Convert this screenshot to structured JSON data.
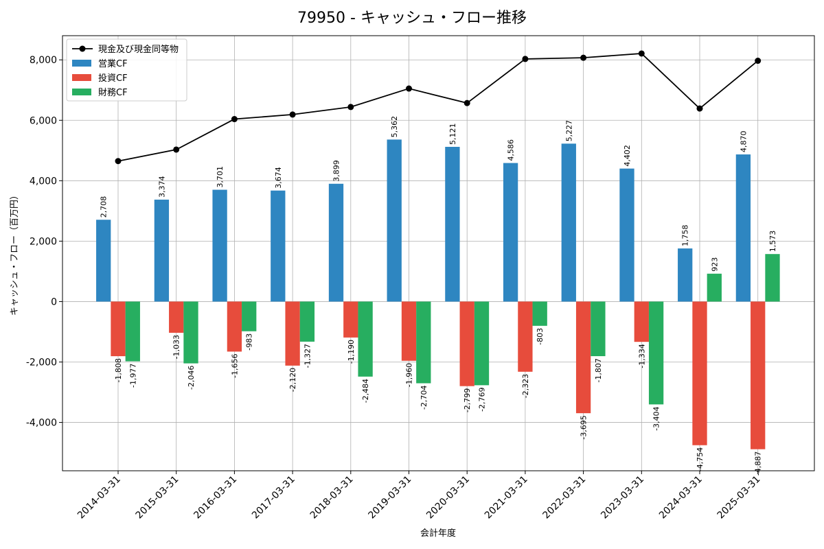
{
  "chart_data": {
    "type": "bar",
    "title": "79950 - キャッシュ・フロー推移",
    "xlabel": "会計年度",
    "ylabel": "キャッシュ・フロー（百万円）",
    "ylim": [
      -5600,
      8800
    ],
    "yticks": [
      -4000,
      -2000,
      0,
      2000,
      4000,
      6000,
      8000
    ],
    "ytick_labels": [
      "-4,000",
      "-2,000",
      "0",
      "2,000",
      "4,000",
      "6,000",
      "8,000"
    ],
    "grid": true,
    "legend_position": "top-left",
    "categories": [
      "2014-03-31",
      "2015-03-31",
      "2016-03-31",
      "2017-03-31",
      "2018-03-31",
      "2019-03-31",
      "2020-03-31",
      "2021-03-31",
      "2022-03-31",
      "2023-03-31",
      "2024-03-31",
      "2025-03-31"
    ],
    "series": [
      {
        "name": "営業CF",
        "kind": "bar",
        "color": "#2e86c1",
        "values": [
          2708,
          3374,
          3701,
          3674,
          3899,
          5362,
          5121,
          4586,
          5227,
          4402,
          1758,
          4870
        ],
        "labels": [
          "2,708",
          "3,374",
          "3,701",
          "3,674",
          "3,899",
          "5,362",
          "5,121",
          "4,586",
          "5,227",
          "4,402",
          "1,758",
          "4,870"
        ]
      },
      {
        "name": "投資CF",
        "kind": "bar",
        "color": "#e74c3c",
        "values": [
          -1808,
          -1033,
          -1656,
          -2120,
          -1190,
          -1960,
          -2799,
          -2323,
          -3695,
          -1334,
          -4754,
          -4887
        ],
        "labels": [
          "-1,808",
          "-1,033",
          "-1,656",
          "-2,120",
          "-1,190",
          "-1,960",
          "-2,799",
          "-2,323",
          "-3,695",
          "-1,334",
          "-4,754",
          "-4,887"
        ]
      },
      {
        "name": "財務CF",
        "kind": "bar",
        "color": "#27ae60",
        "values": [
          -1977,
          -2046,
          -983,
          -1327,
          -2484,
          -2704,
          -2769,
          -803,
          -1807,
          -3404,
          923,
          1573
        ],
        "labels": [
          "-1,977",
          "-2,046",
          "-983",
          "-1,327",
          "-2,484",
          "-2,704",
          "-2,769",
          "-803",
          "-1,807",
          "-3,404",
          "923",
          "1,573"
        ]
      },
      {
        "name": "現金及び現金同等物",
        "kind": "line",
        "color": "#000000",
        "values": [
          4650,
          5030,
          6040,
          6190,
          6440,
          7050,
          6570,
          8030,
          8070,
          8210,
          6390,
          7970
        ]
      }
    ]
  }
}
